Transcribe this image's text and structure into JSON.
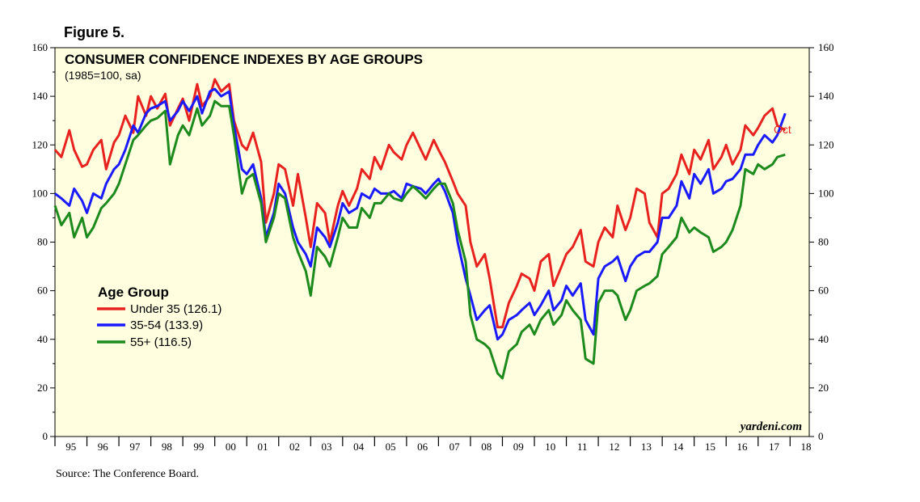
{
  "figure_label": "Figure 5.",
  "source": "Source: The Conference Board.",
  "watermark": "yardeni.com",
  "chart_data": {
    "type": "line",
    "title": "CONSUMER CONFIDENCE INDEXES BY AGE GROUPS",
    "subtitle": "(1985=100, sa)",
    "xlabel": "",
    "ylabel": "",
    "ylim": [
      0,
      160
    ],
    "xlim": [
      1995.0,
      2018.6
    ],
    "y_ticks": [
      0,
      20,
      40,
      60,
      80,
      100,
      120,
      140,
      160
    ],
    "x_tick_labels": [
      "95",
      "96",
      "97",
      "98",
      "99",
      "00",
      "01",
      "02",
      "03",
      "04",
      "05",
      "06",
      "07",
      "08",
      "09",
      "10",
      "11",
      "12",
      "13",
      "14",
      "15",
      "16",
      "17",
      "18"
    ],
    "grid": false,
    "legend_title": "Age Group",
    "legend_position": "left",
    "annotation": "Oct",
    "series": [
      {
        "name": "Under 35 (126.1)",
        "color": "#e8231f",
        "x": [
          1995.0,
          1995.2,
          1995.45,
          1995.6,
          1995.85,
          1996.0,
          1996.2,
          1996.45,
          1996.6,
          1996.85,
          1997.0,
          1997.2,
          1997.45,
          1997.6,
          1997.85,
          1998.0,
          1998.2,
          1998.45,
          1998.6,
          1998.85,
          1999.0,
          1999.2,
          1999.45,
          1999.6,
          1999.85,
          2000.0,
          2000.2,
          2000.45,
          2000.6,
          2000.85,
          2001.0,
          2001.2,
          2001.45,
          2001.6,
          2001.85,
          2002.0,
          2002.2,
          2002.45,
          2002.6,
          2002.85,
          2003.0,
          2003.2,
          2003.45,
          2003.6,
          2003.85,
          2004.0,
          2004.2,
          2004.45,
          2004.6,
          2004.85,
          2005.0,
          2005.2,
          2005.45,
          2005.6,
          2005.85,
          2006.0,
          2006.2,
          2006.45,
          2006.6,
          2006.85,
          2007.0,
          2007.2,
          2007.45,
          2007.6,
          2007.85,
          2008.0,
          2008.2,
          2008.45,
          2008.6,
          2008.85,
          2009.0,
          2009.2,
          2009.45,
          2009.6,
          2009.85,
          2010.0,
          2010.2,
          2010.45,
          2010.6,
          2010.85,
          2011.0,
          2011.2,
          2011.45,
          2011.6,
          2011.85,
          2012.0,
          2012.2,
          2012.45,
          2012.6,
          2012.85,
          2013.0,
          2013.2,
          2013.45,
          2013.6,
          2013.85,
          2014.0,
          2014.2,
          2014.45,
          2014.6,
          2014.85,
          2015.0,
          2015.2,
          2015.45,
          2015.6,
          2015.85,
          2016.0,
          2016.2,
          2016.45,
          2016.6,
          2016.85,
          2017.0,
          2017.2,
          2017.45,
          2017.6,
          2017.85
        ],
        "values": [
          118,
          115,
          126,
          118,
          111,
          112,
          118,
          122,
          110,
          121,
          124,
          132,
          125,
          140,
          132,
          140,
          135,
          141,
          128,
          135,
          139,
          130,
          145,
          136,
          140,
          147,
          142,
          145,
          130,
          120,
          118,
          125,
          113,
          88,
          100,
          112,
          110,
          95,
          108,
          90,
          78,
          96,
          92,
          80,
          95,
          101,
          95,
          102,
          110,
          106,
          115,
          110,
          120,
          117,
          114,
          120,
          125,
          118,
          114,
          122,
          118,
          113,
          105,
          100,
          95,
          80,
          70,
          75,
          65,
          45,
          45,
          55,
          62,
          67,
          65,
          60,
          72,
          75,
          62,
          70,
          75,
          78,
          85,
          72,
          70,
          80,
          86,
          82,
          95,
          85,
          90,
          102,
          100,
          88,
          82,
          100,
          102,
          108,
          116,
          108,
          118,
          114,
          122,
          110,
          115,
          120,
          112,
          118,
          128,
          124,
          127,
          132,
          135,
          128,
          126
        ]
      },
      {
        "name": "35-54  (133.9)",
        "color": "#1a1aff",
        "x": [
          1995.0,
          1995.2,
          1995.45,
          1995.6,
          1995.85,
          1996.0,
          1996.2,
          1996.45,
          1996.6,
          1996.85,
          1997.0,
          1997.2,
          1997.45,
          1997.6,
          1997.85,
          1998.0,
          1998.2,
          1998.45,
          1998.6,
          1998.85,
          1999.0,
          1999.2,
          1999.45,
          1999.6,
          1999.85,
          2000.0,
          2000.2,
          2000.45,
          2000.6,
          2000.85,
          2001.0,
          2001.2,
          2001.45,
          2001.6,
          2001.85,
          2002.0,
          2002.2,
          2002.45,
          2002.6,
          2002.85,
          2003.0,
          2003.2,
          2003.45,
          2003.6,
          2003.85,
          2004.0,
          2004.2,
          2004.45,
          2004.6,
          2004.85,
          2005.0,
          2005.2,
          2005.45,
          2005.6,
          2005.85,
          2006.0,
          2006.2,
          2006.45,
          2006.6,
          2006.85,
          2007.0,
          2007.2,
          2007.45,
          2007.6,
          2007.85,
          2008.0,
          2008.2,
          2008.45,
          2008.6,
          2008.85,
          2009.0,
          2009.2,
          2009.45,
          2009.6,
          2009.85,
          2010.0,
          2010.2,
          2010.45,
          2010.6,
          2010.85,
          2011.0,
          2011.2,
          2011.45,
          2011.6,
          2011.85,
          2012.0,
          2012.2,
          2012.45,
          2012.6,
          2012.85,
          2013.0,
          2013.2,
          2013.45,
          2013.6,
          2013.85,
          2014.0,
          2014.2,
          2014.45,
          2014.6,
          2014.85,
          2015.0,
          2015.2,
          2015.45,
          2015.6,
          2015.85,
          2016.0,
          2016.2,
          2016.45,
          2016.6,
          2016.85,
          2017.0,
          2017.2,
          2017.45,
          2017.6,
          2017.85
        ],
        "values": [
          100,
          98,
          95,
          102,
          97,
          92,
          100,
          98,
          104,
          110,
          112,
          118,
          128,
          125,
          133,
          135,
          136,
          138,
          130,
          134,
          138,
          134,
          140,
          133,
          142,
          143,
          140,
          142,
          128,
          110,
          108,
          112,
          98,
          82,
          92,
          104,
          100,
          86,
          80,
          75,
          70,
          86,
          82,
          78,
          88,
          96,
          92,
          94,
          100,
          98,
          102,
          100,
          100,
          101,
          98,
          104,
          103,
          102,
          100,
          104,
          106,
          101,
          92,
          80,
          65,
          58,
          48,
          52,
          54,
          40,
          42,
          48,
          50,
          52,
          55,
          50,
          54,
          60,
          52,
          56,
          62,
          58,
          63,
          48,
          42,
          65,
          70,
          72,
          74,
          64,
          70,
          74,
          76,
          76,
          80,
          90,
          90,
          95,
          105,
          98,
          108,
          104,
          110,
          100,
          102,
          105,
          106,
          110,
          116,
          116,
          120,
          124,
          121,
          124,
          133
        ]
      },
      {
        "name": "55+ (116.5)",
        "color": "#1d8a1d",
        "x": [
          1995.0,
          1995.2,
          1995.45,
          1995.6,
          1995.85,
          1996.0,
          1996.2,
          1996.45,
          1996.6,
          1996.85,
          1997.0,
          1997.2,
          1997.45,
          1997.6,
          1997.85,
          1998.0,
          1998.2,
          1998.45,
          1998.6,
          1998.85,
          1999.0,
          1999.2,
          1999.45,
          1999.6,
          1999.85,
          2000.0,
          2000.2,
          2000.45,
          2000.6,
          2000.85,
          2001.0,
          2001.2,
          2001.45,
          2001.6,
          2001.85,
          2002.0,
          2002.2,
          2002.45,
          2002.6,
          2002.85,
          2003.0,
          2003.2,
          2003.45,
          2003.6,
          2003.85,
          2004.0,
          2004.2,
          2004.45,
          2004.6,
          2004.85,
          2005.0,
          2005.2,
          2005.45,
          2005.6,
          2005.85,
          2006.0,
          2006.2,
          2006.45,
          2006.6,
          2006.85,
          2007.0,
          2007.2,
          2007.45,
          2007.6,
          2007.85,
          2008.0,
          2008.2,
          2008.45,
          2008.6,
          2008.85,
          2009.0,
          2009.2,
          2009.45,
          2009.6,
          2009.85,
          2010.0,
          2010.2,
          2010.45,
          2010.6,
          2010.85,
          2011.0,
          2011.2,
          2011.45,
          2011.6,
          2011.85,
          2012.0,
          2012.2,
          2012.45,
          2012.6,
          2012.85,
          2013.0,
          2013.2,
          2013.45,
          2013.6,
          2013.85,
          2014.0,
          2014.2,
          2014.45,
          2014.6,
          2014.85,
          2015.0,
          2015.2,
          2015.45,
          2015.6,
          2015.85,
          2016.0,
          2016.2,
          2016.45,
          2016.6,
          2016.85,
          2017.0,
          2017.2,
          2017.45,
          2017.6,
          2017.85
        ],
        "values": [
          95,
          87,
          92,
          82,
          90,
          82,
          86,
          94,
          96,
          100,
          104,
          112,
          122,
          124,
          128,
          130,
          131,
          134,
          112,
          124,
          128,
          124,
          135,
          128,
          132,
          138,
          136,
          136,
          124,
          100,
          106,
          108,
          96,
          80,
          90,
          100,
          98,
          82,
          76,
          68,
          58,
          78,
          74,
          70,
          82,
          90,
          86,
          86,
          94,
          90,
          96,
          96,
          100,
          98,
          97,
          100,
          103,
          100,
          98,
          102,
          104,
          104,
          96,
          85,
          72,
          50,
          40,
          38,
          36,
          26,
          24,
          35,
          38,
          43,
          46,
          42,
          48,
          52,
          46,
          50,
          56,
          52,
          48,
          32,
          30,
          55,
          60,
          60,
          58,
          48,
          52,
          60,
          62,
          63,
          66,
          75,
          78,
          82,
          90,
          84,
          86,
          84,
          82,
          76,
          78,
          80,
          85,
          95,
          110,
          108,
          112,
          110,
          112,
          115,
          116
        ]
      }
    ]
  }
}
